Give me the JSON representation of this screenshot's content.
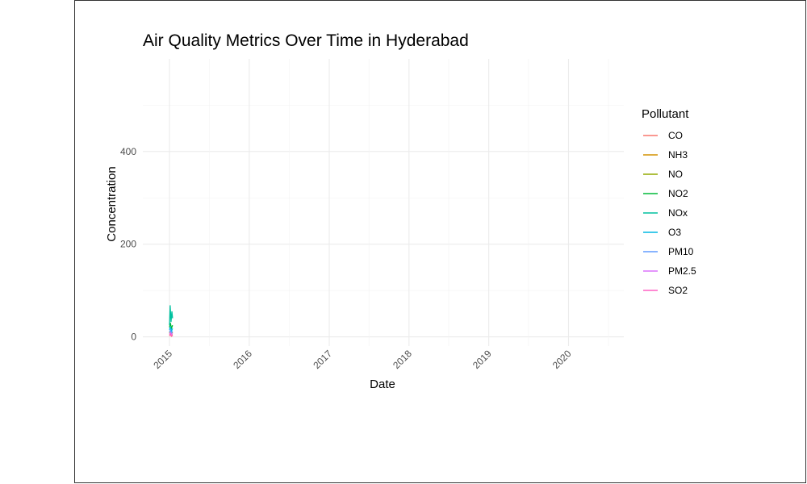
{
  "chart_data": {
    "type": "line",
    "title": "Air Quality Metrics Over Time in Hyderabad",
    "xlabel": "Date",
    "ylabel": "Concentration",
    "xlim": [
      "2014-09-01",
      "2020-09-10"
    ],
    "ylim": [
      -20,
      600
    ],
    "x_ticks": [
      "2015",
      "2016",
      "2017",
      "2018",
      "2019",
      "2020"
    ],
    "y_ticks": [
      0,
      200,
      400
    ],
    "grid": true,
    "legend": {
      "title": "Pollutant",
      "position": "right"
    },
    "series": [
      {
        "name": "CO",
        "color": "#F8766D",
        "points": [
          [
            "2015-01-01",
            2
          ],
          [
            "2015-01-05",
            5
          ],
          [
            "2015-01-10",
            1
          ],
          [
            "2015-01-15",
            3
          ]
        ]
      },
      {
        "name": "NH3",
        "color": "#D39200",
        "points": [
          [
            "2015-01-01",
            4
          ],
          [
            "2015-01-05",
            6
          ],
          [
            "2015-01-10",
            3
          ],
          [
            "2015-01-15",
            5
          ]
        ]
      },
      {
        "name": "NO",
        "color": "#93AA00",
        "points": [
          [
            "2015-01-01",
            8
          ],
          [
            "2015-01-05",
            12
          ],
          [
            "2015-01-10",
            6
          ],
          [
            "2015-01-15",
            10
          ]
        ]
      },
      {
        "name": "NO2",
        "color": "#00BA38",
        "points": [
          [
            "2015-01-01",
            20
          ],
          [
            "2015-01-05",
            30
          ],
          [
            "2015-01-10",
            18
          ],
          [
            "2015-01-15",
            25
          ]
        ]
      },
      {
        "name": "NOx",
        "color": "#00C19F",
        "points": [
          [
            "2015-01-01",
            25
          ],
          [
            "2015-01-04",
            68
          ],
          [
            "2015-01-08",
            32
          ],
          [
            "2015-01-12",
            55
          ],
          [
            "2015-01-15",
            40
          ]
        ]
      },
      {
        "name": "O3",
        "color": "#00B9E3",
        "points": [
          [
            "2015-01-01",
            15
          ],
          [
            "2015-01-05",
            22
          ],
          [
            "2015-01-10",
            12
          ],
          [
            "2015-01-15",
            18
          ]
        ]
      },
      {
        "name": "PM10",
        "color": "#619CFF",
        "points": [
          [
            "2015-01-01",
            10
          ],
          [
            "2015-01-05",
            14
          ],
          [
            "2015-01-10",
            9
          ],
          [
            "2015-01-15",
            12
          ]
        ]
      },
      {
        "name": "PM2.5",
        "color": "#DB72FB",
        "points": [
          [
            "2015-01-01",
            6
          ],
          [
            "2015-01-05",
            9
          ],
          [
            "2015-01-10",
            5
          ],
          [
            "2015-01-15",
            8
          ]
        ]
      },
      {
        "name": "SO2",
        "color": "#FF61C3",
        "points": [
          [
            "2015-01-01",
            3
          ],
          [
            "2015-01-05",
            6
          ],
          [
            "2015-01-10",
            2
          ],
          [
            "2015-01-15",
            4
          ]
        ]
      }
    ]
  }
}
